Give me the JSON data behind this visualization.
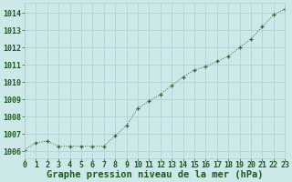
{
  "x": [
    0,
    1,
    2,
    3,
    4,
    5,
    6,
    7,
    8,
    9,
    10,
    11,
    12,
    13,
    14,
    15,
    16,
    17,
    18,
    19,
    20,
    21,
    22,
    23
  ],
  "y": [
    1006.1,
    1006.5,
    1006.6,
    1006.3,
    1006.3,
    1006.3,
    1006.3,
    1006.3,
    1006.9,
    1007.5,
    1008.5,
    1008.9,
    1009.3,
    1009.8,
    1010.3,
    1010.7,
    1010.9,
    1011.2,
    1011.5,
    1012.0,
    1012.5,
    1013.2,
    1013.9,
    1014.2
  ],
  "xlabel": "Graphe pression niveau de la mer (hPa)",
  "ylim": [
    1005.6,
    1014.6
  ],
  "xlim": [
    0,
    23
  ],
  "yticks": [
    1006,
    1007,
    1008,
    1009,
    1010,
    1011,
    1012,
    1013,
    1014
  ],
  "xticks": [
    0,
    1,
    2,
    3,
    4,
    5,
    6,
    7,
    8,
    9,
    10,
    11,
    12,
    13,
    14,
    15,
    16,
    17,
    18,
    19,
    20,
    21,
    22,
    23
  ],
  "line_color": "#2d6a2d",
  "marker_color": "#2d6a2d",
  "background_color": "#cce8e8",
  "grid_color": "#aacece",
  "xlabel_color": "#1a5c1a",
  "tick_color": "#1a5c1a",
  "xlabel_fontsize": 7.5,
  "tick_fontsize": 6.0
}
